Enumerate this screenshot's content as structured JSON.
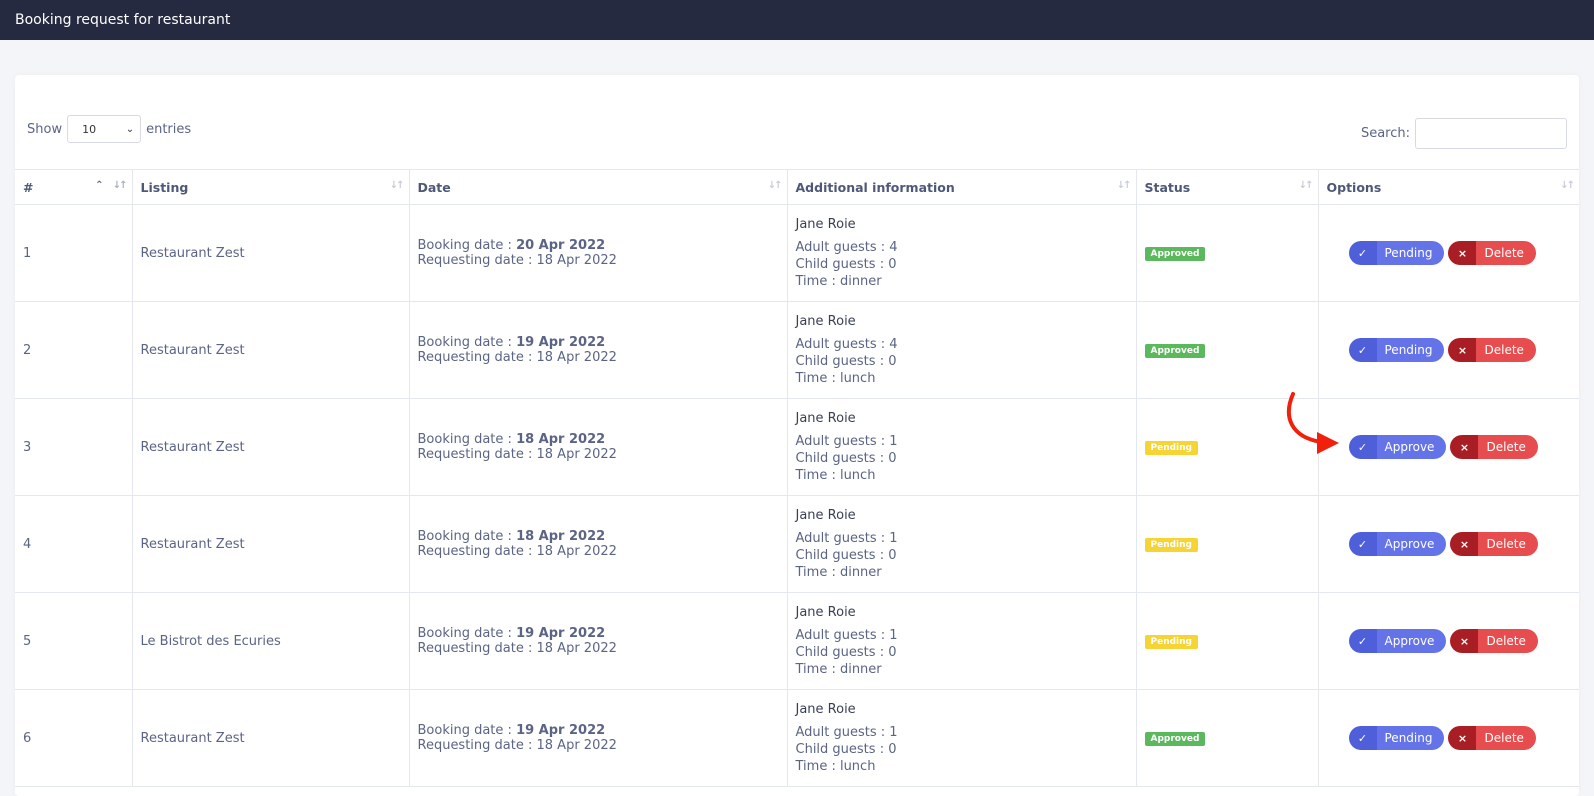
{
  "header": {
    "title": "Booking request for restaurant"
  },
  "controls": {
    "show_label": "Show",
    "entries_value": "10",
    "entries_label": "entries",
    "search_label": "Search:"
  },
  "table": {
    "columns": [
      "#",
      "Listing",
      "Date",
      "Additional information",
      "Status",
      "Options"
    ],
    "rows": [
      {
        "num": "1",
        "listing": "Restaurant Zest",
        "booking_label": "Booking date : ",
        "booking_date": "20 Apr 2022",
        "request_label": "Requesting date : ",
        "request_date": "18 Apr 2022",
        "name": "Jane Roie",
        "adults": "Adult guests : 4",
        "children": "Child guests : 0",
        "time": "Time : dinner",
        "status": "Approved",
        "action": "Pending",
        "delete": "Delete"
      },
      {
        "num": "2",
        "listing": "Restaurant Zest",
        "booking_label": "Booking date : ",
        "booking_date": "19 Apr 2022",
        "request_label": "Requesting date : ",
        "request_date": "18 Apr 2022",
        "name": "Jane Roie",
        "adults": "Adult guests : 4",
        "children": "Child guests : 0",
        "time": "Time : lunch",
        "status": "Approved",
        "action": "Pending",
        "delete": "Delete"
      },
      {
        "num": "3",
        "listing": "Restaurant Zest",
        "booking_label": "Booking date : ",
        "booking_date": "18 Apr 2022",
        "request_label": "Requesting date : ",
        "request_date": "18 Apr 2022",
        "name": "Jane Roie",
        "adults": "Adult guests : 1",
        "children": "Child guests : 0",
        "time": "Time : lunch",
        "status": "Pending",
        "action": "Approve",
        "delete": "Delete"
      },
      {
        "num": "4",
        "listing": "Restaurant Zest",
        "booking_label": "Booking date : ",
        "booking_date": "18 Apr 2022",
        "request_label": "Requesting date : ",
        "request_date": "18 Apr 2022",
        "name": "Jane Roie",
        "adults": "Adult guests : 1",
        "children": "Child guests : 0",
        "time": "Time : dinner",
        "status": "Pending",
        "action": "Approve",
        "delete": "Delete"
      },
      {
        "num": "5",
        "listing": "Le Bistrot des Ecuries",
        "booking_label": "Booking date : ",
        "booking_date": "19 Apr 2022",
        "request_label": "Requesting date : ",
        "request_date": "18 Apr 2022",
        "name": "Jane Roie",
        "adults": "Adult guests : 1",
        "children": "Child guests : 0",
        "time": "Time : dinner",
        "status": "Pending",
        "action": "Approve",
        "delete": "Delete"
      },
      {
        "num": "6",
        "listing": "Restaurant Zest",
        "booking_label": "Booking date : ",
        "booking_date": "19 Apr 2022",
        "request_label": "Requesting date : ",
        "request_date": "18 Apr 2022",
        "name": "Jane Roie",
        "adults": "Adult guests : 1",
        "children": "Child guests : 0",
        "time": "Time : lunch",
        "status": "Approved",
        "action": "Pending",
        "delete": "Delete"
      }
    ]
  },
  "colors": {
    "header_bg": "#262a40",
    "approved": "#5cb85c",
    "pending": "#f5d433",
    "primary": "#6474e8",
    "danger": "#e74c4f",
    "annotation_arrow": "#f0200c"
  },
  "icons": {
    "check": "check-icon",
    "close": "close-icon",
    "caret": "chevron-down-icon",
    "sort": "sort-icon"
  }
}
